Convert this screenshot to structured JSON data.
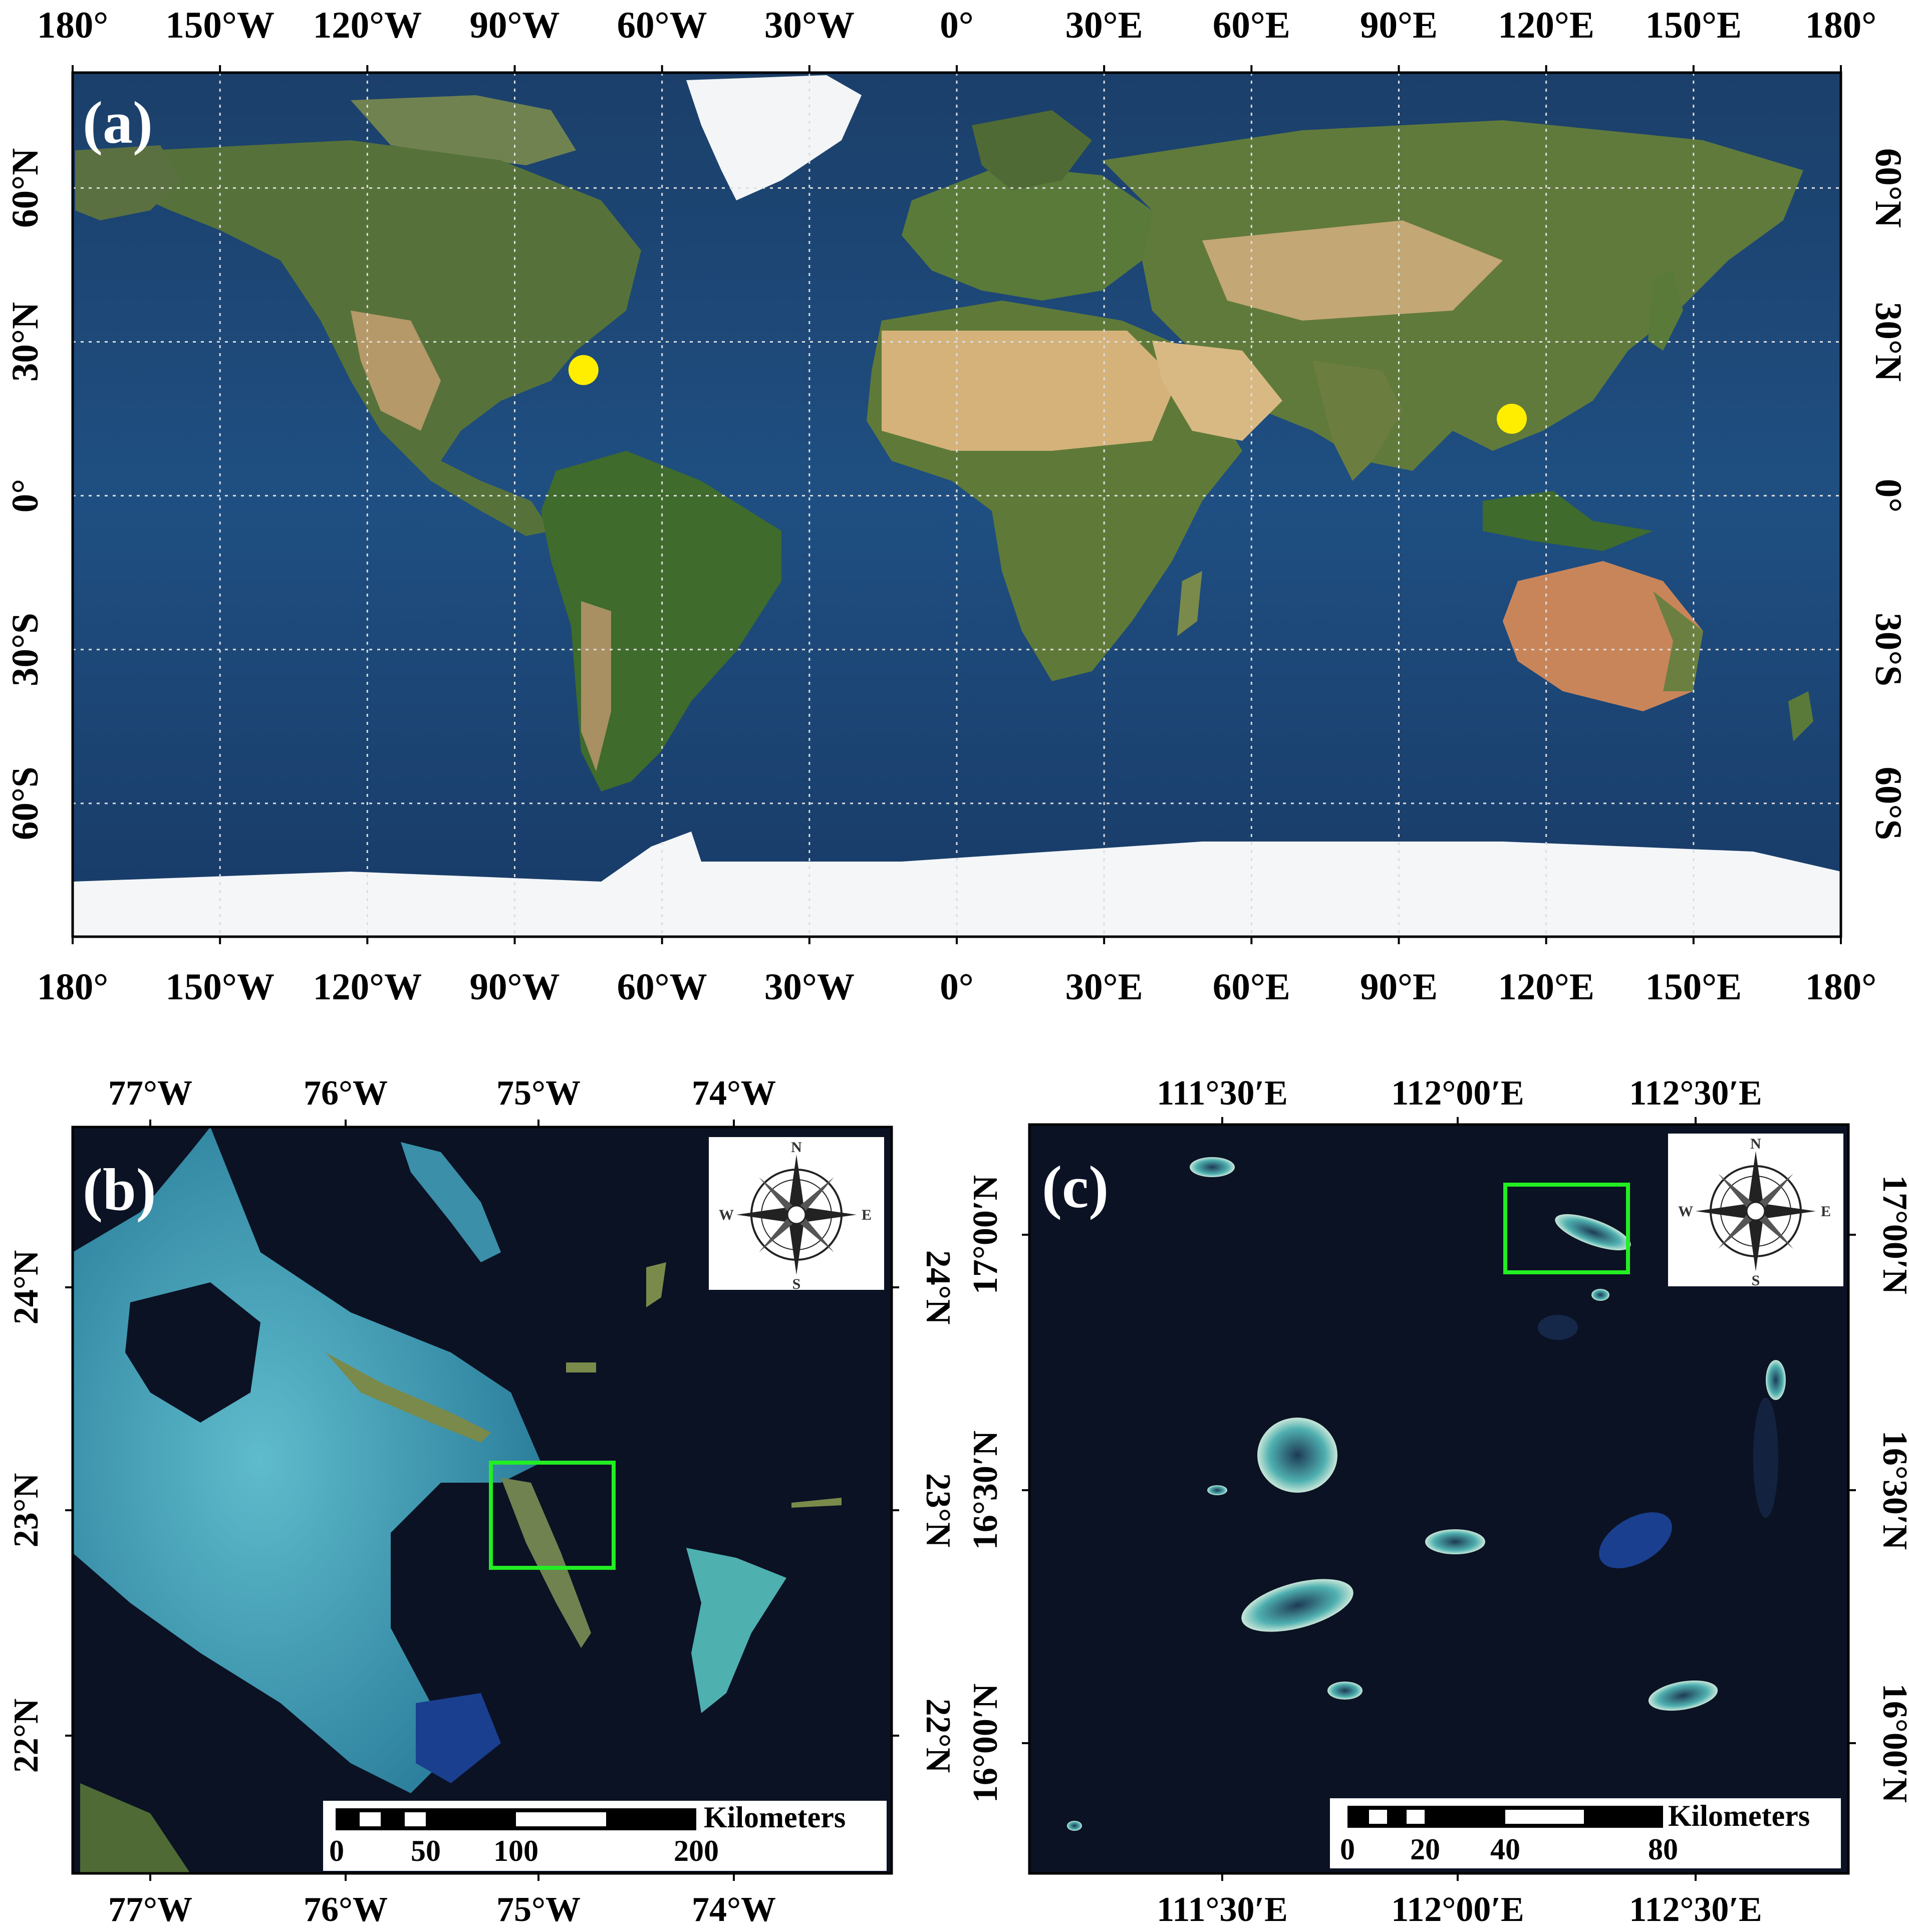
{
  "panel_a": {
    "label": "(a)",
    "top_ticks": [
      "180°",
      "150°W",
      "120°W",
      "90°W",
      "60°W",
      "30°W",
      "0°",
      "30°E",
      "60°E",
      "90°E",
      "120°E",
      "150°E",
      "180°"
    ],
    "bottom_ticks": [
      "180°",
      "150°W",
      "120°W",
      "90°W",
      "60°W",
      "30°W",
      "0°",
      "30°E",
      "60°E",
      "90°E",
      "120°E",
      "150°E",
      "180°"
    ],
    "lat_ticks": [
      "60°N",
      "30°N",
      "0°",
      "30°S",
      "60°S"
    ],
    "markers": [
      {
        "name": "bahamas-study-site-marker",
        "lon": -76.0,
        "lat": 24.5,
        "color": "#ffee00"
      },
      {
        "name": "south-china-sea-study-site-marker",
        "lon": 113.0,
        "lat": 15.0,
        "color": "#ffee00"
      }
    ]
  },
  "panel_b": {
    "label": "(b)",
    "top_ticks": [
      "77°W",
      "76°W",
      "75°W",
      "74°W"
    ],
    "bottom_ticks": [
      "77°W",
      "76°W",
      "75°W",
      "74°W"
    ],
    "lat_ticks": [
      "24°N",
      "23°N",
      "22°N"
    ],
    "scalebar": {
      "unit": "Kilometers",
      "labels": [
        "0",
        "50",
        "100",
        "200"
      ]
    },
    "compass": {
      "n": "N",
      "s": "S",
      "e": "E",
      "w": "W"
    }
  },
  "panel_c": {
    "label": "(c)",
    "top_ticks": [
      "111°30′E",
      "112°00′E",
      "112°30′E"
    ],
    "bottom_ticks": [
      "111°30′E",
      "112°00′E",
      "112°30′E"
    ],
    "lat_ticks": [
      "17°00′N",
      "16°30′N",
      "16°00′N"
    ],
    "scalebar": {
      "unit": "Kilometers",
      "labels": [
        "0",
        "20",
        "40",
        "80"
      ]
    },
    "compass": {
      "n": "N",
      "s": "S",
      "e": "E",
      "w": "W"
    }
  },
  "colors": {
    "ocean_a": "#1f4a7a",
    "ocean_dark": "#0b1224",
    "land_green": "#4f6b30",
    "land_desert": "#c9a86b",
    "ice": "#f4f6f8",
    "shallow_water": "#3b9fb8",
    "highlight_box": "#22ee22",
    "marker": "#ffee00"
  }
}
